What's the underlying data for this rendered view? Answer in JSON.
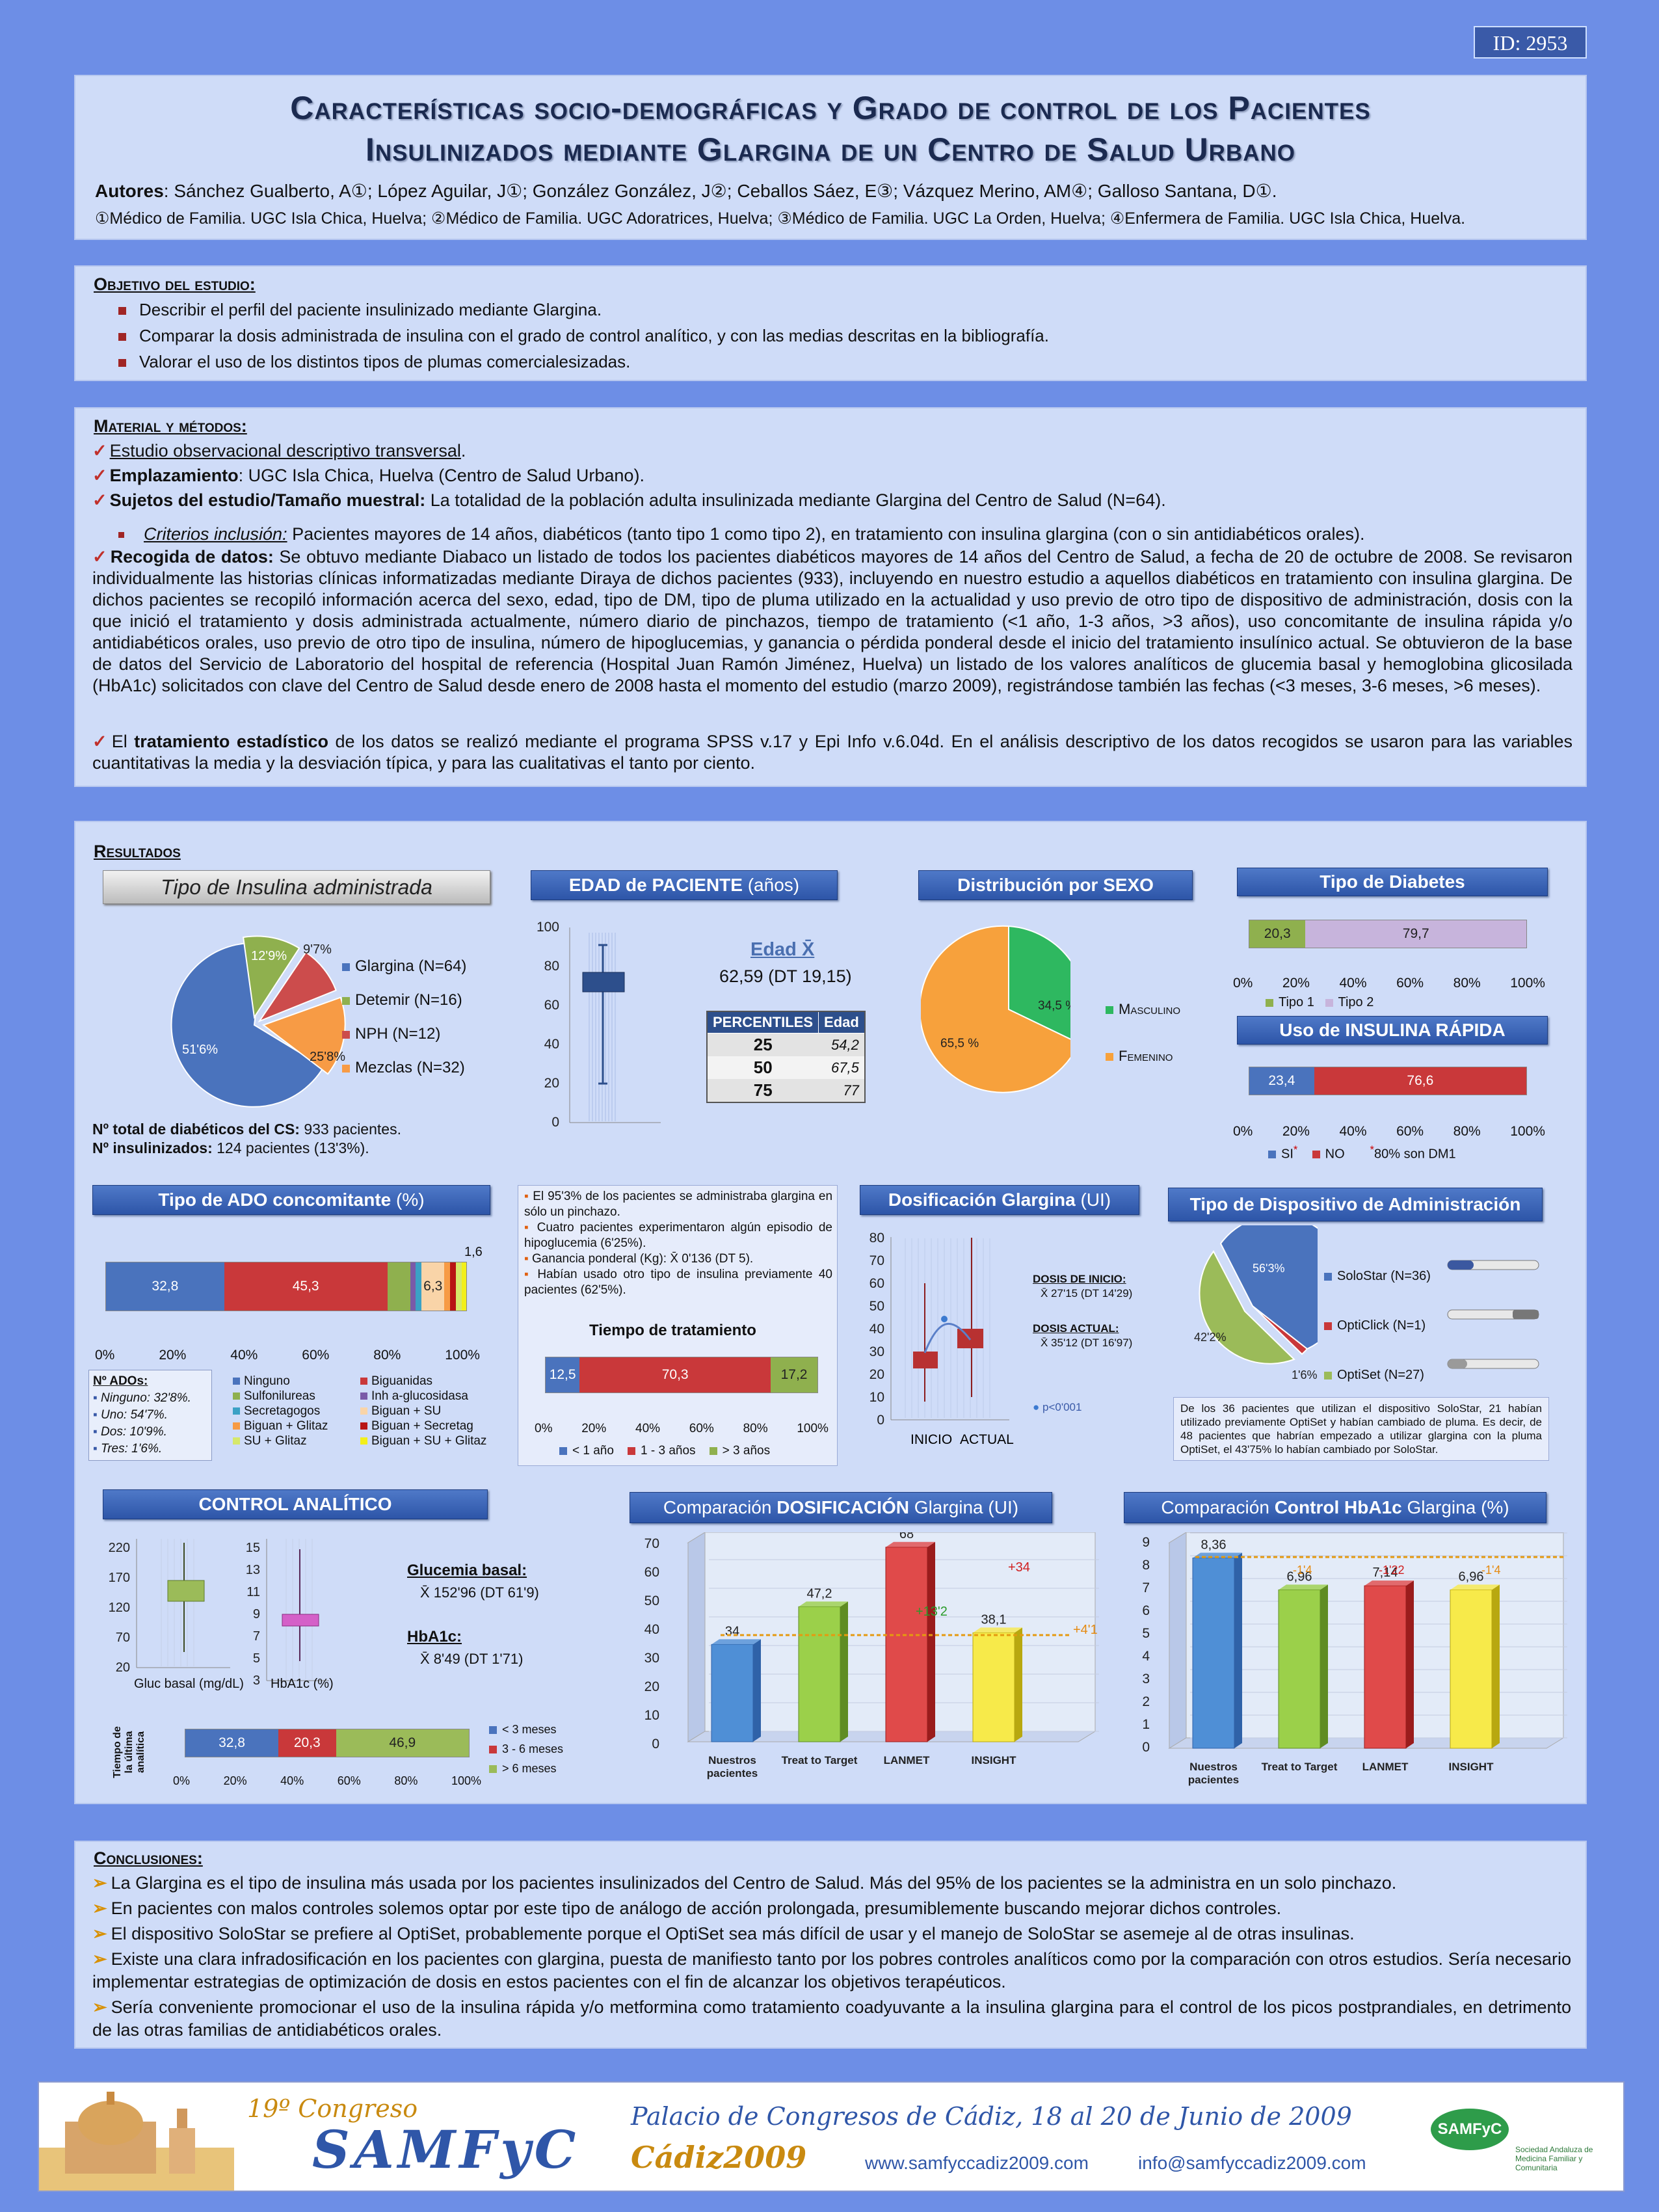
{
  "id": "ID: 2953",
  "title_line1": "Características socio-demográficas y Grado de control de los Pacientes",
  "title_line2": "Insulinizados mediante Glargina de un Centro de Salud Urbano",
  "authors_label": "Autores",
  "authors": ": Sánchez Gualberto, A①; López Aguilar, J①; González González, J②; Ceballos Sáez, E③; Vázquez Merino, AM④; Galloso Santana, D①.",
  "affiliations": "①Médico de Familia. UGC Isla Chica, Huelva; ②Médico de Familia. UGC Adoratrices, Huelva; ③Médico de Familia. UGC La Orden, Huelva; ④Enfermera de Familia. UGC Isla Chica, Huelva.",
  "objective": {
    "heading": "Objetivo del estudio:",
    "items": [
      "Describir el perfil del paciente insulinizado mediante Glargina.",
      "Comparar la dosis administrada de insulina con el grado de control analítico, y con las medias descritas en la bibliografía.",
      "Valorar el uso de los distintos tipos de plumas comerciales­izadas."
    ]
  },
  "methods": {
    "heading": "Material y métodos:",
    "l1": "Estudio observacional descriptivo transversal",
    "l2a": "Emplazamiento",
    "l2b": ": UGC Isla Chica, Huelva (Centro de Salud Urbano).",
    "l3a": "Sujetos del estudio/Tamaño muestral:",
    "l3b": " La totalidad de la población adulta insulinizada mediante Glargina del Centro de Salud (N=64).",
    "l4a": "Criterios inclusión:",
    "l4b": " Pacientes mayores de 14 años, diabéticos (tanto tipo 1 como tipo 2), en tratamiento con insulina glargina (con o sin antidiabéticos orales).",
    "l5a": "Recogida de datos:",
    "l5b": " Se obtuvo mediante Diabaco un listado de todos los pacientes diabéticos mayores de 14 años del Centro de Salud, a fecha de 20 de octubre de 2008. Se revisaron individualmente las historias clínicas informatizadas mediante Diraya de dichos pacientes (933), incluyendo en nuestro estudio a aquellos diabéticos en tratamiento con insulina glargina. De dichos pacientes se recopiló información acerca del sexo, edad, tipo de DM, tipo de pluma utilizado en la actualidad y uso previo de otro tipo de dispositivo de administración, dosis con la que inició el tratamiento y dosis administrada actualmente, número diario de pinchazos, tiempo de tratamiento (<1 año, 1-3 años, >3 años), uso concomitante de insulina rápida y/o antidiabéticos orales, uso previo de otro tipo de insulina, número de hipoglucemias, y ganancia o pérdida ponderal desde el inicio del tratamiento insulínico actual. Se obtuvieron de la base de datos del Servicio de Laboratorio del hospital de referencia (Hospital Juan Ramón Jiménez, Huelva) un listado de los valores analíticos de glucemia basal y hemoglobina glicosilada (HbA1c) solicitados con clave del Centro de Salud desde enero de 2008 hasta el momento del estudio (marzo 2009), registrándose también las fechas (<3 meses, 3-6 meses, >6 meses).",
    "l6a": "El ",
    "l6b": "tratamiento estadístico",
    "l6c": " de los datos se realizó mediante el programa SPSS v.17 y Epi Info v.6.04d. En el análisis descriptivo de los datos recogidos se usaron para las variables cuantitativas la media y la desviación típica, y para las cualitativas el tanto por ciento."
  },
  "results": {
    "heading": "Resultados",
    "insulina": {
      "title": "Tipo de Insulina administrada",
      "labels": [
        "51'6%",
        "12'9%",
        "9'7%",
        "25'8%"
      ],
      "legend": [
        "Glargina (N=64)",
        "Detemir (N=16)",
        "NPH (N=12)",
        "Mezclas (N=32)"
      ],
      "total_a": "Nº total de diabéticos del CS:",
      "total_b": " 933 pacientes.",
      "ins_a": "Nº insulinizados:",
      "ins_b": " 124 pacientes (13'3%)."
    },
    "edad": {
      "title_a": "EDAD de PACIENTE",
      "title_b": " (años)",
      "mean_label": "Edad X̄",
      "mean_value": "62,59 (DT 19,15)",
      "ticks": [
        "100",
        "80",
        "60",
        "40",
        "20",
        "0"
      ],
      "th1": "PERCENTILES",
      "th2": "Edad",
      "rows": [
        [
          "25",
          "54,2"
        ],
        [
          "50",
          "67,5"
        ],
        [
          "75",
          "77"
        ]
      ]
    },
    "sexo": {
      "title": "Distribución por SEXO",
      "m_pct": "34,5 %",
      "f_pct": "65,5 %",
      "m_label": "Masculino",
      "f_label": "Femenino"
    },
    "diabetes": {
      "title": "Tipo de Diabetes",
      "v1": "20,3",
      "v2": "79,7",
      "axis": [
        "0%",
        "20%",
        "40%",
        "60%",
        "80%",
        "100%"
      ],
      "leg1": "Tipo 1",
      "leg2": "Tipo 2"
    },
    "rapida": {
      "title": "Uso de INSULINA RÁPIDA",
      "v1": "23,4",
      "v2": "76,6",
      "leg1": "SI",
      "star": "*",
      "leg2": "NO",
      "foot": "80% son DM1"
    },
    "ado": {
      "title_a": "Tipo de ADO concomitante",
      "title_b": " (%)",
      "v_ninguno": "32,8",
      "v_big": "45,3",
      "v_small": "6,3",
      "v_top": "1,6",
      "axis": [
        "0%",
        "20%",
        "40%",
        "60%",
        "80%",
        "100%"
      ],
      "num_title": "Nº ADOs:",
      "num_items": [
        "Ninguno: 32'8%.",
        "Uno: 54'7%.",
        "Dos: 10'9%.",
        "Tres: 1'6%."
      ],
      "legend": [
        "Ninguno",
        "Biguanidas",
        "Sulfonilureas",
        "Inh a-glucosidasa",
        "Secretagogos",
        "Biguan + SU",
        "Biguan + Glitaz",
        "Biguan + Secretag",
        "SU + Glitaz",
        "Biguan + SU + Glitaz"
      ]
    },
    "notes": {
      "n1": "El 95'3% de los pacientes se administraba glargina en sólo un pinchazo.",
      "n2": "Cuatro pacientes experimentaron algún episodio de hipoglucemia (6'25%).",
      "n3": "Ganancia ponderal (Kg): X̄ 0'136 (DT 5).",
      "n4": "Habían usado otro tipo de insulina previamente 40 pacientes (62'5%)."
    },
    "tiempo": {
      "title": "Tiempo de tratamiento",
      "v1": "12,5",
      "v2": "70,3",
      "v3": "17,2",
      "legend": [
        "< 1 año",
        "1 - 3 años",
        "> 3 años"
      ]
    },
    "dosis": {
      "title_a": "Dosificación Glargina",
      "title_b": " (UI)",
      "ticks": [
        "80",
        "70",
        "60",
        "50",
        "40",
        "30",
        "20",
        "10",
        "0"
      ],
      "inicio_label": "DOSIS DE INICIO:",
      "inicio_value": "X̄ 27'15 (DT 14'29)",
      "actual_label": "DOSIS ACTUAL:",
      "actual_value": "X̄ 35'12 (DT 16'97)",
      "p": "p<0'001",
      "xlabels": [
        "INICIO",
        "ACTUAL"
      ]
    },
    "dispositivo": {
      "title": "Tipo de Dispositivo de Administración",
      "labels": [
        "56'3%",
        "42'2%",
        "1'6%"
      ],
      "legend": [
        "SoloStar (N=36)",
        "OptiClick (N=1)",
        "OptiSet (N=27)"
      ],
      "note": "De los 36 pacientes que utilizan el dispositivo SoloStar, 21 habían utilizado previamente OptiSet y habían cambiado de pluma. Es decir, de 48 pacientes que habrían empezado a utilizar glargina con la pluma OptiSet, el 43'75% lo habían cambiado por SoloStar."
    },
    "control": {
      "title": "CONTROL ANALÍTICO",
      "gluc_ticks": [
        "220",
        "170",
        "120",
        "70",
        "20"
      ],
      "hba_ticks": [
        "15",
        "13",
        "11",
        "9",
        "7",
        "5",
        "3"
      ],
      "gluc_x": "Gluc basal (mg/dL)",
      "hba_x": "HbA1c (%)",
      "gl_title": "Glucemia basal:",
      "gl_value": "X̄ 152'96 (DT 61'9)",
      "hb_title": "HbA1c:",
      "hb_value": "X̄ 8'49 (DT 1'71)",
      "ult_label": "Tiempo de la última analítica",
      "v1": "32,8",
      "v2": "20,3",
      "v3": "46,9",
      "legend": [
        "< 3 meses",
        "3 - 6 meses",
        "> 6 meses"
      ],
      "axis": [
        "0%",
        "20%",
        "40%",
        "60%",
        "80%",
        "100%"
      ]
    },
    "comp_dosis": {
      "title_a": "Comparación ",
      "title_b": "DOSIFICACIÓN",
      "title_c": " Glargina (UI)",
      "ticks": [
        "70",
        "60",
        "50",
        "40",
        "30",
        "20",
        "10",
        "0"
      ],
      "diff": [
        "+13'2",
        "+34",
        "+4'1"
      ]
    },
    "comp_hba": {
      "title_a": "Comparación ",
      "title_b": "Control HbA1c",
      "title_c": " Glargina (%)",
      "ticks": [
        "9",
        "8",
        "7",
        "6",
        "5",
        "4",
        "3",
        "2",
        "1",
        "0"
      ],
      "diff": [
        "-1'4",
        "-1'22",
        "-1'4"
      ]
    }
  },
  "chart_data": [
    {
      "type": "pie",
      "title": "Tipo de Insulina administrada",
      "categories": [
        "Glargina (N=64)",
        "Detemir (N=16)",
        "NPH (N=12)",
        "Mezclas (N=32)"
      ],
      "values": [
        51.6,
        12.9,
        9.7,
        25.8
      ]
    },
    {
      "type": "pie",
      "title": "Distribución por SEXO",
      "categories": [
        "Masculino",
        "Femenino"
      ],
      "values": [
        34.5,
        65.5
      ]
    },
    {
      "type": "bar",
      "title": "Tipo de Diabetes",
      "categories": [
        "Tipo 1",
        "Tipo 2"
      ],
      "values": [
        20.3,
        79.7
      ]
    },
    {
      "type": "bar",
      "title": "Uso de INSULINA RÁPIDA",
      "categories": [
        "SI",
        "NO"
      ],
      "values": [
        23.4,
        76.6
      ]
    },
    {
      "type": "bar",
      "title": "Tiempo de tratamiento",
      "categories": [
        "< 1 año",
        "1 - 3 años",
        "> 3 años"
      ],
      "values": [
        12.5,
        70.3,
        17.2
      ]
    },
    {
      "type": "pie",
      "title": "Tipo de Dispositivo de Administración",
      "categories": [
        "SoloStar (N=36)",
        "OptiClick (N=1)",
        "OptiSet (N=27)"
      ],
      "values": [
        56.3,
        1.6,
        42.2
      ]
    },
    {
      "type": "bar",
      "title": "Comparación DOSIFICACIÓN Glargina (UI)",
      "categories": [
        "Nuestros pacientes",
        "Treat to Target",
        "LANMET",
        "INSIGHT"
      ],
      "values": [
        34,
        47.2,
        68,
        38.1
      ],
      "ylim": [
        0,
        70
      ]
    },
    {
      "type": "bar",
      "title": "Comparación Control HbA1c Glargina (%)",
      "categories": [
        "Nuestros pacientes",
        "Treat to Target",
        "LANMET",
        "INSIGHT"
      ],
      "values": [
        8.36,
        6.96,
        7.14,
        6.96
      ],
      "ylim": [
        0,
        9
      ]
    },
    {
      "type": "bar",
      "title": "Tiempo de la última analítica",
      "categories": [
        "< 3 meses",
        "3 - 6 meses",
        "> 6 meses"
      ],
      "values": [
        32.8,
        20.3,
        46.9
      ]
    }
  ],
  "conclusions": {
    "heading": "Conclusiones:",
    "items": [
      "La Glargina es el tipo de insulina más usada por los pacientes insulinizados del Centro de Salud. Más del 95% de los pacientes se la administra en un solo pinchazo.",
      "En pacientes con malos controles solemos optar por este tipo de análogo de acción prolongada, presumiblemente buscando mejorar dichos controles.",
      "El dispositivo SoloStar se prefiere al OptiSet, probablemente porque el OptiSet sea más difícil de usar y el manejo de SoloStar se asemeje al de otras insulinas.",
      "Existe una clara infradosificación en los pacientes con glargina, puesta de manifiesto tanto por los pobres controles analíticos como por la comparación con otros estudios. Sería necesario implementar estrategias de optimización de dosis en estos pacientes con el fin de alcanzar los objetivos terapéuticos.",
      "Sería conveniente promocionar el uso de la insulina rápida y/o metformina como tratamiento coadyuvante a la insulina glargina para el control de los picos postprandiales, en detrimento de las otras familias de antidiabéticos orales."
    ]
  },
  "footer": {
    "congreso_a": "19º Congreso",
    "congreso_b": "SAMFyC",
    "place": "Palacio de Congresos de Cádiz, 18 al 20 de Junio de 2009",
    "city": "Cádiz2009",
    "web": "www.samfyccadiz2009.com",
    "mail": "info@samfyccadiz2009.com",
    "logo": "SAMFyC",
    "logo_sub": "Sociedad Andaluza de Medicina Familiar y Comunitaria"
  }
}
